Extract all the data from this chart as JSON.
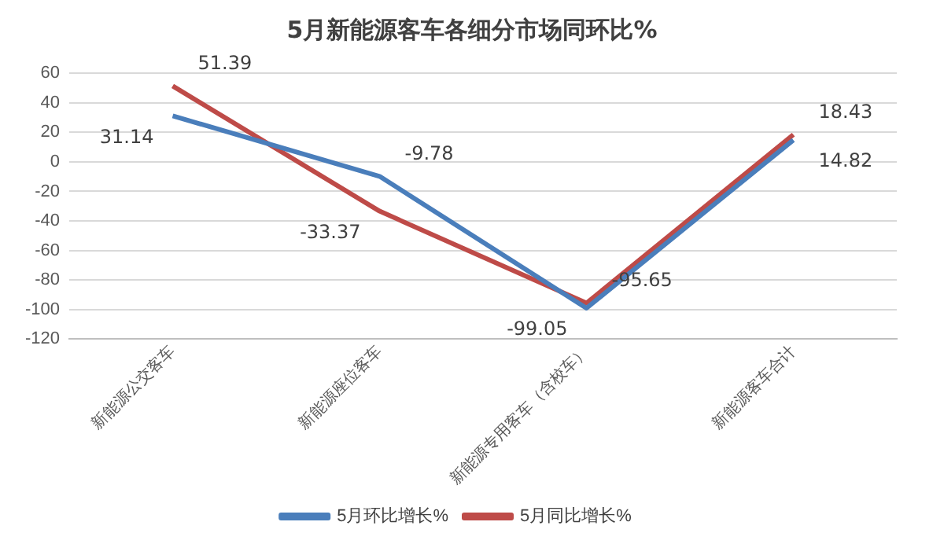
{
  "chart_data": {
    "type": "line",
    "title": "5月新能源客车各细分市场同环比%",
    "categories": [
      "新能源公交客车",
      "新能源座位客车",
      "新能源专用客车（含校车）",
      "新能源客车合计"
    ],
    "series": [
      {
        "name": "5月环比增长%",
        "color": "#4a7ebb",
        "values": [
          31.14,
          -9.78,
          -99.05,
          14.82
        ]
      },
      {
        "name": "5月同比增长%",
        "color": "#be4b48",
        "values": [
          51.39,
          -33.37,
          -95.65,
          18.43
        ]
      }
    ],
    "ylim": [
      -120,
      60
    ],
    "yticks": [
      -120,
      -100,
      -80,
      -60,
      -40,
      -20,
      0,
      20,
      40,
      60
    ],
    "grid": "y",
    "legend": "bottom",
    "marker": "none",
    "data_labels": true
  }
}
